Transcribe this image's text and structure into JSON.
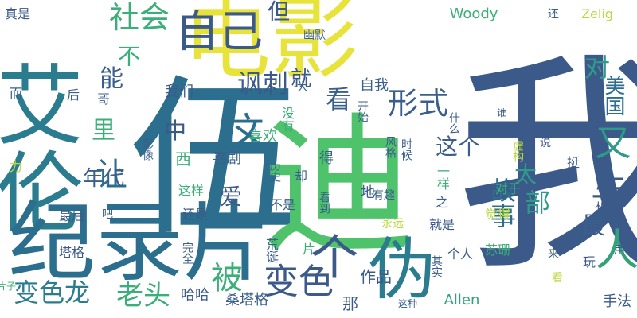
{
  "words": [
    {
      "text": "我",
      "color": "#3b5a8a",
      "vertical": true
    },
    {
      "text": "伍",
      "color": "#2c6e8e",
      "vertical": false
    },
    {
      "text": "迪",
      "color": "#4ec36b",
      "vertical": false
    },
    {
      "text": "电影",
      "color": "#e8e33a",
      "vertical": false
    },
    {
      "text": "艾伦",
      "color": "#2a7c8e",
      "vertical": true
    },
    {
      "text": "纪录片",
      "color": "#2c6e8e",
      "vertical": false
    },
    {
      "text": "伪",
      "color": "#2a7c8e",
      "vertical": false
    },
    {
      "text": "自己",
      "color": "#3b5a8a",
      "vertical": false
    },
    {
      "text": "社会",
      "color": "#3cae7a",
      "vertical": false
    },
    {
      "text": "个",
      "color": "#3b5a8a",
      "vertical": false
    },
    {
      "text": "人",
      "color": "#33a27a",
      "vertical": false
    },
    {
      "text": "这",
      "color": "#2c6e8e",
      "vertical": false
    },
    {
      "text": "讽刺",
      "color": "#3b5a8a",
      "vertical": false
    },
    {
      "text": "形式",
      "color": "#3a5f8c",
      "vertical": false
    },
    {
      "text": "看",
      "color": "#3a5f8c",
      "vertical": false
    },
    {
      "text": "变色",
      "color": "#3b5a8a",
      "vertical": false
    },
    {
      "text": "变色龙",
      "color": "#2a7c8e",
      "vertical": false
    },
    {
      "text": "被",
      "color": "#3cae7a",
      "vertical": false
    },
    {
      "text": "老头",
      "color": "#3cae7a",
      "vertical": false
    },
    {
      "text": "对",
      "color": "#2f9a8a",
      "vertical": false
    },
    {
      "text": "又",
      "color": "#2f9a8a",
      "vertical": false
    },
    {
      "text": "美国",
      "color": "#2c6e8e",
      "vertical": true
    },
    {
      "text": "与",
      "color": "#3b5a8a",
      "vertical": false
    },
    {
      "text": "故事",
      "color": "#2c6e8e",
      "vertical": true
    },
    {
      "text": "部",
      "color": "#2f9a8a",
      "vertical": false
    },
    {
      "text": "最",
      "color": "#3a5f8c",
      "vertical": false
    },
    {
      "text": "这个",
      "color": "#3a5f8c",
      "vertical": false
    },
    {
      "text": "太",
      "color": "#2f9a8a",
      "vertical": false
    },
    {
      "text": "让",
      "color": "#2c6e8e",
      "vertical": false
    },
    {
      "text": "年代",
      "color": "#3a5f8c",
      "vertical": false
    },
    {
      "text": "里",
      "color": "#3cae7a",
      "vertical": false
    },
    {
      "text": "中",
      "color": "#3b5a8a",
      "vertical": false
    },
    {
      "text": "能",
      "color": "#3a5f8c",
      "vertical": false
    },
    {
      "text": "不",
      "color": "#3cae7a",
      "vertical": true
    },
    {
      "text": "但",
      "color": "#3b5a8a",
      "vertical": false
    },
    {
      "text": "就",
      "color": "#3b5a8a",
      "vertical": false
    },
    {
      "text": "爱",
      "color": "#3b5a8a",
      "vertical": false
    },
    {
      "text": "Woody",
      "color": "#3cae7a",
      "vertical": false
    },
    {
      "text": "Allen",
      "color": "#33a27a",
      "vertical": false
    },
    {
      "text": "Zelig",
      "color": "#b8da3a",
      "vertical": false
    },
    {
      "text": "作品",
      "color": "#3b5a8a",
      "vertical": false
    },
    {
      "text": "那",
      "color": "#3b5a8a",
      "vertical": false
    },
    {
      "text": "哈哈",
      "color": "#3b5a8a",
      "vertical": false
    },
    {
      "text": "桑塔格",
      "color": "#3a5f8c",
      "vertical": false
    },
    {
      "text": "手法",
      "color": "#3b5a8a",
      "vertical": false
    },
    {
      "text": "真是",
      "color": "#3b5a8a",
      "vertical": false
    },
    {
      "text": "而",
      "color": "#3a5f8c",
      "vertical": false
    },
    {
      "text": "后",
      "color": "#3a5f8c",
      "vertical": false
    },
    {
      "text": "哥",
      "color": "#3a5f8c",
      "vertical": false
    },
    {
      "text": "我们",
      "color": "#3b5a8a",
      "vertical": false
    },
    {
      "text": "大",
      "color": "#3a5f8c",
      "vertical": false
    },
    {
      "text": "幽默",
      "color": "#3a5f8c",
      "vertical": false
    },
    {
      "text": "还",
      "color": "#3a5f8c",
      "vertical": false
    },
    {
      "text": "自我",
      "color": "#3a5f8c",
      "vertical": false
    },
    {
      "text": "开始",
      "color": "#3a5f8c",
      "vertical": true
    },
    {
      "text": "没有",
      "color": "#3cae7a",
      "vertical": true
    },
    {
      "text": "喜欢",
      "color": "#3cae7a",
      "vertical": false
    },
    {
      "text": "喜剧",
      "color": "#3a5f8c",
      "vertical": false
    },
    {
      "text": "历史",
      "color": "#3a5f8c",
      "vertical": true
    },
    {
      "text": "风格",
      "color": "#3a5f8c",
      "vertical": true
    },
    {
      "text": "时候",
      "color": "#3a5f8c",
      "vertical": true
    },
    {
      "text": "得",
      "color": "#3b5a8a",
      "vertical": false
    },
    {
      "text": "一样",
      "color": "#3cae7a",
      "vertical": true
    },
    {
      "text": "之",
      "color": "#3a5f8c",
      "vertical": false
    },
    {
      "text": "什么",
      "color": "#3a5f8c",
      "vertical": true
    },
    {
      "text": "谁",
      "color": "#3a5f8c",
      "vertical": false
    },
    {
      "text": "说",
      "color": "#3b5a8a",
      "vertical": false
    },
    {
      "text": "挺",
      "color": "#3b5a8a",
      "vertical": false
    },
    {
      "text": "虚构",
      "color": "#b8da3a",
      "vertical": true
    },
    {
      "text": "对于",
      "color": "#3cae7a",
      "vertical": false
    },
    {
      "text": "觉得",
      "color": "#b8da3a",
      "vertical": false
    },
    {
      "text": "想",
      "color": "#3b5a8a",
      "vertical": false
    },
    {
      "text": "影像",
      "color": "#3a5f8c",
      "vertical": true
    },
    {
      "text": "西",
      "color": "#3cae7a",
      "vertical": false
    },
    {
      "text": "力",
      "color": "#b8da3a",
      "vertical": false
    },
    {
      "text": "这样",
      "color": "#3cae7a",
      "vertical": false
    },
    {
      "text": "还是",
      "color": "#3b5a8a",
      "vertical": false
    },
    {
      "text": "最后",
      "color": "#3b5a8a",
      "vertical": false
    },
    {
      "text": "吧",
      "color": "#3a5f8c",
      "vertical": false
    },
    {
      "text": "塔格",
      "color": "#3b5a8a",
      "vertical": false
    },
    {
      "text": "完全",
      "color": "#3a5f8c",
      "vertical": true
    },
    {
      "text": "荒诞",
      "color": "#3a5f8c",
      "vertical": true
    },
    {
      "text": "却",
      "color": "#3a5f8c",
      "vertical": false
    },
    {
      "text": "不是",
      "color": "#3a5f8c",
      "vertical": false
    },
    {
      "text": "看到",
      "color": "#3a5f8c",
      "vertical": true
    },
    {
      "text": "地",
      "color": "#3b5a8a",
      "vertical": false
    },
    {
      "text": "有趣",
      "color": "#3a5f8c",
      "vertical": false
    },
    {
      "text": "就是",
      "color": "#3b5a8a",
      "vertical": false
    },
    {
      "text": "永远",
      "color": "#b8da3a",
      "vertical": false
    },
    {
      "text": "片",
      "color": "#3cae7a",
      "vertical": false
    },
    {
      "text": "其实",
      "color": "#3a5f8c",
      "vertical": true
    },
    {
      "text": "个人",
      "color": "#3b5a8a",
      "vertical": false
    },
    {
      "text": "苏珊",
      "color": "#3cae7a",
      "vertical": false
    },
    {
      "text": "来",
      "color": "#3a5f8c",
      "vertical": false
    },
    {
      "text": "玩",
      "color": "#3b5a8a",
      "vertical": false
    },
    {
      "text": "用",
      "color": "#3b5a8a",
      "vertical": false
    },
    {
      "text": "这种",
      "color": "#3a5f8c",
      "vertical": false
    },
    {
      "text": "片子",
      "color": "#3cae7a",
      "vertical": false
    },
    {
      "text": "看",
      "color": "#b8da3a",
      "vertical": false
    }
  ]
}
